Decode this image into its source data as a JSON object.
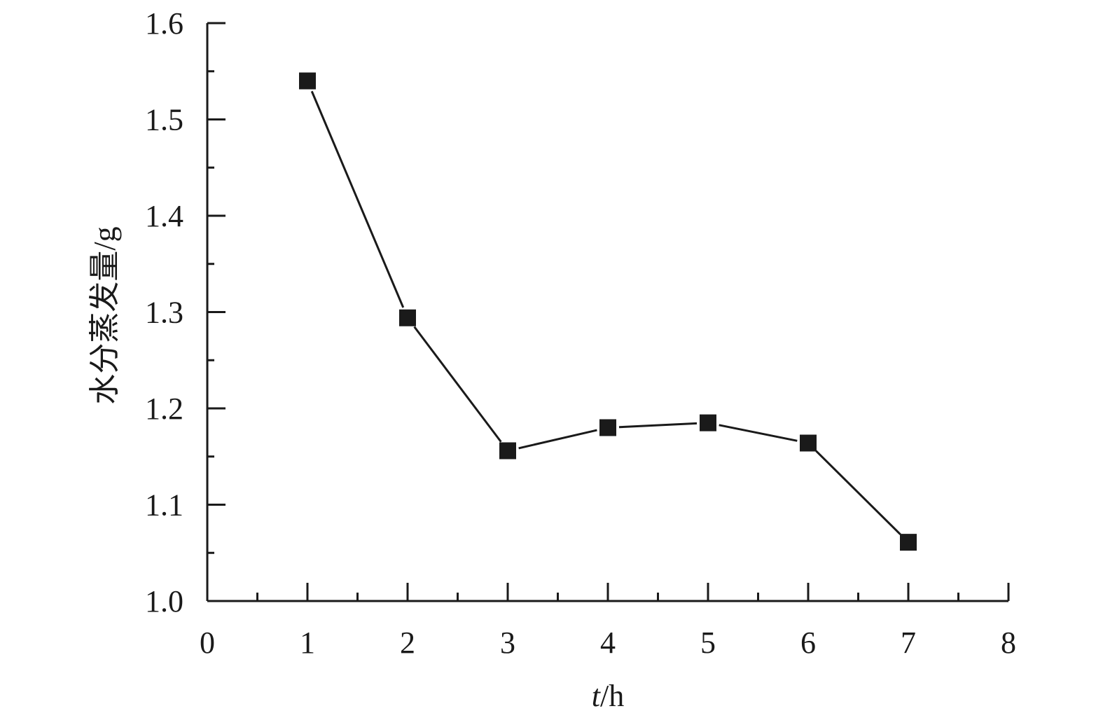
{
  "chart_data": {
    "type": "line",
    "title": "",
    "xlabel_var": "t",
    "xlabel_unit": "/h",
    "ylabel": "水分蒸发量/g",
    "xlim": [
      0,
      8
    ],
    "ylim": [
      1.0,
      1.6
    ],
    "x_ticks": [
      "0",
      "1",
      "2",
      "3",
      "4",
      "5",
      "6",
      "7",
      "8"
    ],
    "y_ticks": [
      "1.0",
      "1.1",
      "1.2",
      "1.3",
      "1.4",
      "1.5",
      "1.6"
    ],
    "x_minor_step": 0.5,
    "y_minor_step": 0.05,
    "grid": false,
    "marker": "square",
    "series": [
      {
        "x": [
          1,
          2,
          3,
          4,
          5,
          6,
          7
        ],
        "values": [
          1.54,
          1.294,
          1.156,
          1.18,
          1.185,
          1.164,
          1.061
        ]
      }
    ],
    "colors": {
      "ink": "#1a1a1a"
    }
  }
}
